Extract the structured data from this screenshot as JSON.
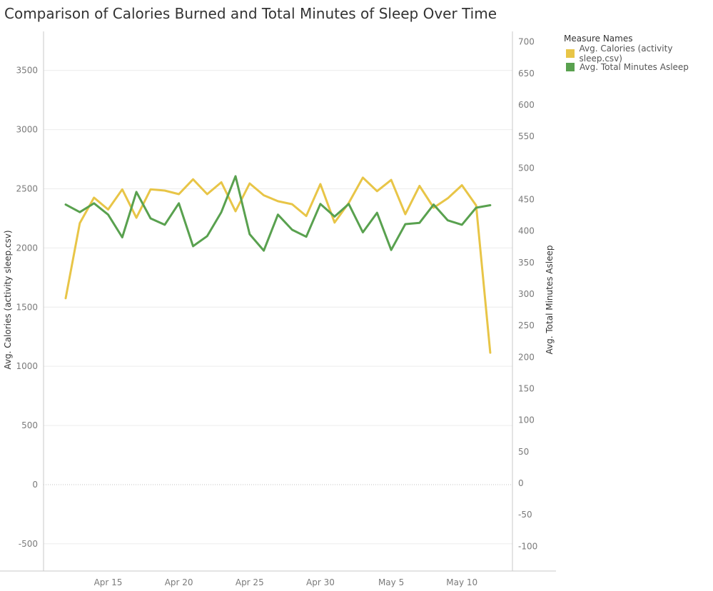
{
  "title": "Comparison of Calories Burned and Total Minutes of Sleep Over Time",
  "legend": {
    "title": "Measure Names",
    "items": [
      {
        "label": "Avg. Calories (activity sleep.csv)",
        "color": "#E8C547"
      },
      {
        "label": "Avg. Total Minutes Asleep",
        "color": "#59A14F"
      }
    ]
  },
  "chart_data": {
    "type": "line",
    "x": [
      "2016-04-12",
      "2016-04-13",
      "2016-04-14",
      "2016-04-15",
      "2016-04-16",
      "2016-04-17",
      "2016-04-18",
      "2016-04-19",
      "2016-04-20",
      "2016-04-21",
      "2016-04-22",
      "2016-04-23",
      "2016-04-24",
      "2016-04-25",
      "2016-04-26",
      "2016-04-27",
      "2016-04-28",
      "2016-04-29",
      "2016-04-30",
      "2016-05-01",
      "2016-05-02",
      "2016-05-03",
      "2016-05-04",
      "2016-05-05",
      "2016-05-06",
      "2016-05-07",
      "2016-05-08",
      "2016-05-09",
      "2016-05-10",
      "2016-05-11",
      "2016-05-12"
    ],
    "x_ticks": [
      "Apr 15",
      "Apr 20",
      "Apr 25",
      "Apr 30",
      "May 5",
      "May 10"
    ],
    "x_tick_dates": [
      "2016-04-15",
      "2016-04-20",
      "2016-04-25",
      "2016-04-30",
      "2016-05-05",
      "2016-05-10"
    ],
    "series": [
      {
        "name": "Avg. Calories (activity sleep.csv)",
        "axis": "left",
        "color": "#E8C547",
        "values": [
          1575,
          2210,
          2425,
          2325,
          2495,
          2255,
          2495,
          2485,
          2455,
          2580,
          2455,
          2555,
          2310,
          2545,
          2445,
          2395,
          2370,
          2270,
          2540,
          2215,
          2380,
          2595,
          2480,
          2575,
          2285,
          2525,
          2340,
          2420,
          2530,
          2360,
          1115
        ]
      },
      {
        "name": "Avg. Total Minutes Asleep",
        "axis": "right",
        "color": "#59A14F",
        "values": [
          442,
          430,
          444,
          426,
          390,
          462,
          420,
          410,
          444,
          376,
          392,
          430,
          487,
          395,
          369,
          426,
          402,
          391,
          443,
          423,
          443,
          398,
          429,
          370,
          411,
          413,
          442,
          417,
          410,
          437,
          441
        ]
      }
    ],
    "ylabel": "Avg. Calories (activity sleep.csv)",
    "y2label": "Avg. Total Minutes Asleep",
    "ylim": [
      -730,
      3830
    ],
    "y2lim": [
      -139.3,
      716.7
    ],
    "y_ticks": [
      3500,
      3000,
      2500,
      2000,
      1500,
      1000,
      500,
      0,
      -500
    ],
    "y2_ticks": [
      700,
      650,
      600,
      550,
      500,
      450,
      400,
      350,
      300,
      250,
      200,
      150,
      100,
      50,
      0,
      -50,
      -100
    ],
    "grid": true,
    "legend_position": "top-right"
  }
}
